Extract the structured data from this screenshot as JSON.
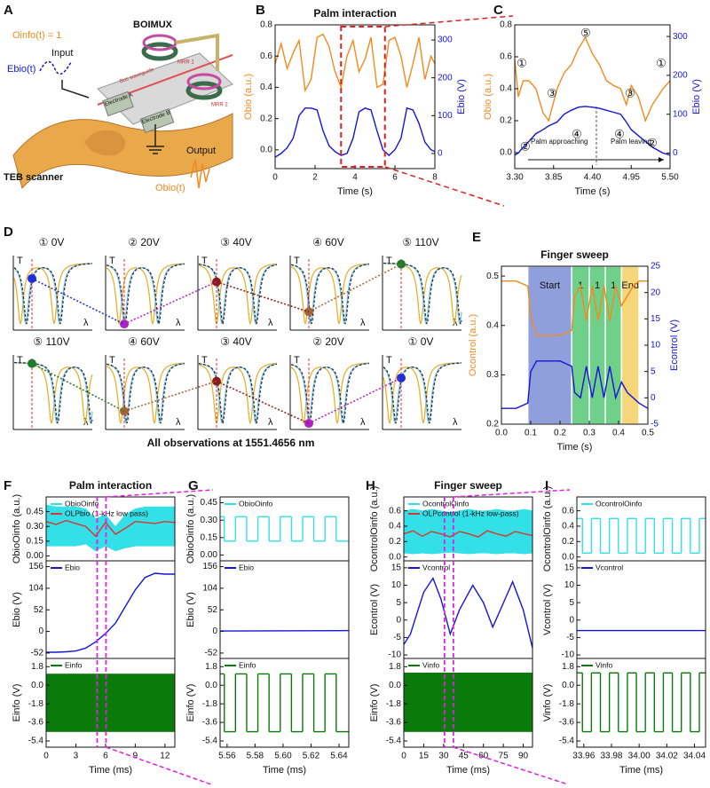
{
  "panel_labels": [
    "A",
    "B",
    "C",
    "D",
    "E",
    "F",
    "G",
    "H",
    "I"
  ],
  "panel_a": {
    "info": "Oinfo(t) = 1",
    "name": "BOIMUX",
    "input": "Input",
    "ebio": "Ebio(t)",
    "waveguide": "Bus waveguide",
    "mrr1": "MRR 1",
    "mrr2": "MRR 2",
    "electrode_a": "Electrode A",
    "electrode_b": "Electrode B",
    "output": "Output",
    "scanner": "TEB scanner",
    "obio": "Obio(t)"
  },
  "panel_d": {
    "rows": [
      [
        "① 0V",
        "② 20V",
        "③ 40V",
        "④ 60V",
        "⑤ 110V"
      ],
      [
        "⑤ 110V",
        "④ 60V",
        "③ 40V",
        "② 20V",
        "① 0V"
      ]
    ],
    "axis_t": "T",
    "axis_lambda": "λ",
    "caption": "All observations at 1551.4656 nm"
  },
  "chart_data": [
    {
      "type": "line",
      "title": "Palm interaction",
      "xlabel": "Time (s)",
      "ylabel": "Obio (a.u.)",
      "y2label": "Ebio (V)",
      "xlim": [
        0,
        8
      ],
      "xticks": [
        0,
        2,
        4,
        6,
        8
      ],
      "ylim": [
        -0.12,
        0.8
      ],
      "yticks": [
        {
          "value": 0,
          "label": "0.0"
        },
        0.2,
        0.4,
        0.6,
        0.8
      ],
      "y2lim": [
        -40,
        340
      ],
      "y2ticks": [
        0,
        100,
        200,
        300
      ],
      "x": [
        0,
        0.3,
        0.6,
        0.9,
        1.2,
        1.5,
        1.8,
        2.1,
        2.4,
        2.7,
        3.0,
        3.3,
        3.6,
        3.9,
        4.2,
        4.5,
        4.8,
        5.1,
        5.4,
        5.7,
        6.0,
        6.3,
        6.6,
        6.9,
        7.2,
        7.5,
        7.8,
        8.0
      ],
      "series": [
        {
          "color": "#f28a1e",
          "values": [
            0.55,
            0.68,
            0.52,
            0.62,
            0.7,
            0.38,
            0.45,
            0.72,
            0.74,
            0.66,
            0.5,
            0.4,
            0.6,
            0.7,
            0.5,
            0.58,
            0.72,
            0.4,
            0.42,
            0.7,
            0.72,
            0.6,
            0.4,
            0.55,
            0.72,
            0.45,
            0.6,
            0.55
          ]
        },
        {
          "color": "#1515d6",
          "axis": "y2",
          "values": [
            -10,
            0,
            15,
            40,
            100,
            120,
            120,
            115,
            60,
            20,
            5,
            -5,
            0,
            40,
            110,
            120,
            115,
            60,
            10,
            -5,
            10,
            40,
            120,
            115,
            80,
            30,
            10,
            5
          ]
        }
      ]
    },
    {
      "type": "line",
      "xlabel": "Time (s)",
      "ylabel": "Obio (a.u.)",
      "y2label": "Ebio (V)",
      "xlim": [
        3.3,
        5.5
      ],
      "xticks": [
        {
          "value": 3.3,
          "label": "3.30"
        },
        3.85,
        {
          "value": 4.4,
          "label": "4.40"
        },
        4.95,
        {
          "value": 5.5,
          "label": "5.50"
        }
      ],
      "ylim": [
        -0.1,
        0.8
      ],
      "yticks": [
        {
          "value": 0,
          "label": "0.0"
        },
        0.2,
        0.4,
        0.6,
        0.8
      ],
      "y2lim": [
        -40,
        330
      ],
      "y2ticks": [
        0,
        100,
        200,
        300
      ],
      "annotations": [
        "Palm approaching",
        "Palm leaving"
      ],
      "markers": [
        "①",
        "②",
        "③",
        "④",
        "⑤"
      ],
      "x": [
        3.3,
        3.35,
        3.42,
        3.5,
        3.6,
        3.7,
        3.78,
        3.9,
        4.0,
        4.1,
        4.2,
        4.3,
        4.4,
        4.5,
        4.6,
        4.7,
        4.8,
        4.88,
        4.95,
        5.05,
        5.15,
        5.25,
        5.4,
        5.5
      ],
      "series": [
        {
          "color": "#f28a1e",
          "values": [
            0.58,
            0.35,
            0.45,
            0.45,
            0.4,
            0.25,
            0.2,
            0.4,
            0.5,
            0.55,
            0.65,
            0.72,
            0.62,
            0.55,
            0.45,
            0.42,
            0.4,
            0.3,
            0.42,
            0.35,
            0.2,
            0.3,
            0.4,
            0.45
          ]
        },
        {
          "color": "#1515d6",
          "axis": "y2",
          "values": [
            -5,
            0,
            15,
            30,
            50,
            60,
            70,
            80,
            100,
            110,
            118,
            120,
            118,
            115,
            110,
            105,
            100,
            80,
            60,
            45,
            30,
            15,
            0,
            -5
          ]
        }
      ]
    },
    {
      "type": "line",
      "title": "Finger sweep",
      "xlabel": "Time (s)",
      "ylabel": "Ocontrol (a.u.)",
      "y2label": "Econtrol (V)",
      "xlim": [
        0,
        0.5
      ],
      "xticks": [
        {
          "value": 0,
          "label": "0.0"
        },
        0.1,
        0.2,
        0.3,
        0.4,
        0.5
      ],
      "ylim": [
        0.2,
        0.52
      ],
      "yticks": [
        0.2,
        0.3,
        0.4,
        0.5
      ],
      "y2lim": [
        -5,
        25
      ],
      "y2ticks": [
        -5,
        0,
        5,
        10,
        15,
        20,
        25
      ],
      "regions": [
        {
          "label": "Start",
          "x": [
            0.09,
            0.24
          ],
          "color": "#8e9fdc"
        },
        {
          "label": "1",
          "x": [
            0.24,
            0.3
          ],
          "color": "#6fd08a"
        },
        {
          "label": "1",
          "x": [
            0.3,
            0.355
          ],
          "color": "#6fd08a"
        },
        {
          "label": "1",
          "x": [
            0.355,
            0.41
          ],
          "color": "#6fd08a"
        },
        {
          "label": "End",
          "x": [
            0.41,
            0.47
          ],
          "color": "#f5d77a"
        }
      ],
      "x": [
        0,
        0.05,
        0.09,
        0.1,
        0.12,
        0.2,
        0.24,
        0.25,
        0.27,
        0.29,
        0.31,
        0.33,
        0.35,
        0.37,
        0.39,
        0.41,
        0.43,
        0.45,
        0.47,
        0.5
      ],
      "series": [
        {
          "color": "#f28a1e",
          "values": [
            0.49,
            0.49,
            0.48,
            0.42,
            0.38,
            0.38,
            0.39,
            0.46,
            0.48,
            0.41,
            0.48,
            0.41,
            0.48,
            0.41,
            0.48,
            0.44,
            0.46,
            0.48,
            0.49,
            0.49
          ]
        },
        {
          "color": "#1515d6",
          "axis": "y2",
          "values": [
            -2,
            -2,
            -1,
            5,
            7,
            7,
            6,
            1,
            0,
            6,
            0,
            6,
            0,
            6,
            0,
            3,
            1,
            0,
            -1,
            -2
          ]
        }
      ]
    },
    {
      "type": "band",
      "title": "Palm interaction",
      "ylabel": "ObioOinfo (a.u.)",
      "xlim": [
        0,
        13
      ],
      "ylim": [
        -0.05,
        0.6
      ],
      "yticks": [
        {
          "value": 0,
          "label": "0.00"
        },
        0.15,
        {
          "value": 0.3,
          "label": "0.30"
        },
        0.45
      ],
      "x": [
        0,
        1,
        2,
        3,
        4,
        5,
        6,
        7,
        8,
        9,
        10,
        11,
        12,
        13
      ],
      "series": [
        {
          "name": "ObioOinfo",
          "color": "#33e0e8",
          "high": [
            0.52,
            0.5,
            0.5,
            0.5,
            0.48,
            0.38,
            0.42,
            0.3,
            0.42,
            0.48,
            0.5,
            0.5,
            0.5,
            0.5
          ],
          "low": [
            0.1,
            0.1,
            0.1,
            0.1,
            0.12,
            0.05,
            0.1,
            0.05,
            0.08,
            0.1,
            0.1,
            0.1,
            0.1,
            0.1
          ]
        },
        {
          "name": "OLPbio (1-kHz low pass)",
          "color": "#d9352a",
          "values": [
            0.35,
            0.32,
            0.36,
            0.33,
            0.3,
            0.2,
            0.34,
            0.22,
            0.28,
            0.35,
            0.34,
            0.33,
            0.35,
            0.34
          ]
        }
      ]
    },
    {
      "type": "line",
      "ylabel": "Ebio (V)",
      "xlim": [
        0,
        13
      ],
      "ylim": [
        -65,
        170
      ],
      "yticks": [
        -52,
        0,
        52,
        104,
        156
      ],
      "x": [
        0,
        1,
        2,
        3,
        4,
        5,
        6,
        7,
        8,
        9,
        10,
        11,
        12,
        13
      ],
      "series": [
        {
          "name": "Ebio",
          "color": "#1515d6",
          "values": [
            -50,
            -50,
            -49,
            -47,
            -40,
            -25,
            -5,
            20,
            60,
            100,
            130,
            140,
            138,
            138
          ]
        }
      ]
    },
    {
      "type": "band",
      "ylabel": "Einfo (V)",
      "xlabel": "Time (ms)",
      "xlim": [
        0,
        13
      ],
      "xticks": [
        0,
        3,
        6,
        9,
        12
      ],
      "ylim": [
        -6,
        2.6
      ],
      "yticks": [
        -5.4,
        -3.6,
        -1.8,
        {
          "value": 0,
          "label": "0.0"
        },
        1.8
      ],
      "x": [
        0,
        13
      ],
      "series": [
        {
          "name": "Einfo",
          "color": "#0a7a0a",
          "high": [
            1.1,
            1.1
          ],
          "low": [
            -4.5,
            -4.5
          ]
        }
      ]
    },
    {
      "type": "step",
      "ylabel": "ObioOinfo (a.u.)",
      "xlim": [
        5.555,
        5.647
      ],
      "ylim": [
        -0.05,
        0.5
      ],
      "yticks": [
        {
          "value": 0,
          "label": "0.00"
        },
        0.15,
        {
          "value": 0.3,
          "label": "0.30"
        },
        0.45
      ],
      "x": [
        5.555,
        5.558,
        5.566,
        5.574,
        5.582,
        5.59,
        5.598,
        5.606,
        5.614,
        5.622,
        5.63,
        5.638
      ],
      "series": [
        {
          "name": "ObioOinfo",
          "color": "#33e0e8",
          "values": [
            0.33,
            0.12,
            0.33,
            0.12,
            0.33,
            0.12,
            0.33,
            0.12,
            0.33,
            0.12,
            0.33,
            0.12
          ]
        }
      ]
    },
    {
      "type": "line",
      "ylabel": "Ebio (V)",
      "xlim": [
        5.555,
        5.647
      ],
      "ylim": [
        -65,
        170
      ],
      "yticks": [
        -52,
        0,
        52,
        104,
        156
      ],
      "x": [
        5.555,
        5.647
      ],
      "series": [
        {
          "name": "Ebio",
          "color": "#1515d6",
          "values": [
            1,
            2
          ]
        }
      ]
    },
    {
      "type": "step",
      "ylabel": "Einfo (V)",
      "xlabel": "Time (ms)",
      "xlim": [
        5.555,
        5.647
      ],
      "xticks": [
        5.56,
        5.58,
        {
          "value": 5.6,
          "label": "5.60"
        },
        5.62,
        5.64
      ],
      "ylim": [
        -6,
        2.6
      ],
      "yticks": [
        -5.4,
        -3.6,
        -1.8,
        {
          "value": 0,
          "label": "0.0"
        },
        1.8
      ],
      "x": [
        5.555,
        5.558,
        5.566,
        5.574,
        5.582,
        5.59,
        5.598,
        5.606,
        5.614,
        5.622,
        5.63,
        5.638
      ],
      "series": [
        {
          "name": "Einfo",
          "color": "#0a7a0a",
          "values": [
            1.1,
            -4.5,
            1.1,
            -4.5,
            1.1,
            -4.5,
            1.1,
            -4.5,
            1.1,
            -4.5,
            1.1,
            -4.5
          ]
        }
      ]
    },
    {
      "type": "band",
      "title": "Finger sweep",
      "ylabel": "OcontrolOinfo (a.u.)",
      "xlim": [
        0,
        97
      ],
      "ylim": [
        -0.05,
        0.78
      ],
      "yticks": [
        {
          "value": 0,
          "label": "0.0"
        },
        0.2,
        0.4,
        0.6
      ],
      "x": [
        0,
        7,
        14,
        21,
        28,
        35,
        42,
        49,
        56,
        63,
        70,
        77,
        84,
        91,
        97
      ],
      "series": [
        {
          "name": "OcontrolOinfo",
          "color": "#33e0e8",
          "high": [
            0.6,
            0.62,
            0.6,
            0.62,
            0.6,
            0.58,
            0.6,
            0.62,
            0.6,
            0.6,
            0.62,
            0.6,
            0.6,
            0.62,
            0.6
          ],
          "low": [
            0.05,
            0.04,
            0.05,
            0.04,
            0.05,
            0.06,
            0.05,
            0.04,
            0.05,
            0.05,
            0.04,
            0.05,
            0.05,
            0.04,
            0.05
          ]
        },
        {
          "name": "OLPcontrol (1-kHz low-pass)",
          "color": "#d9352a",
          "values": [
            0.3,
            0.34,
            0.27,
            0.33,
            0.3,
            0.26,
            0.33,
            0.3,
            0.26,
            0.34,
            0.3,
            0.27,
            0.33,
            0.3,
            0.28
          ]
        }
      ]
    },
    {
      "type": "line",
      "ylabel": "Econtrol (V)",
      "xlim": [
        0,
        97
      ],
      "ylim": [
        -11,
        17
      ],
      "yticks": [
        -10,
        -5,
        0,
        5,
        10,
        15
      ],
      "x": [
        0,
        5,
        10,
        15,
        22,
        28,
        35,
        42,
        52,
        60,
        67,
        74,
        82,
        90,
        97
      ],
      "series": [
        {
          "name": "Vcontrol",
          "color": "#1515d6",
          "values": [
            -7,
            -4,
            2,
            8,
            12,
            6,
            -4,
            3,
            10,
            5,
            -2,
            4,
            11,
            3,
            -8
          ]
        }
      ]
    },
    {
      "type": "band",
      "ylabel": "Einfo (V)",
      "xlabel": "Time (ms)",
      "xlim": [
        0,
        97
      ],
      "xticks": [
        0,
        15,
        30,
        45,
        60,
        75,
        90
      ],
      "ylim": [
        -6,
        2.6
      ],
      "yticks": [
        -5.4,
        -3.6,
        -1.8,
        {
          "value": 0,
          "label": "0.0"
        },
        1.8
      ],
      "x": [
        0,
        97
      ],
      "series": [
        {
          "name": "Vinfo",
          "color": "#0a7a0a",
          "high": [
            1.2,
            1.2
          ],
          "low": [
            -4.5,
            -4.5
          ]
        }
      ]
    },
    {
      "type": "step",
      "ylabel": "OcontrolOinfo (a.u.)",
      "xlim": [
        33.955,
        34.048
      ],
      "ylim": [
        -0.05,
        0.78
      ],
      "yticks": [
        {
          "value": 0,
          "label": "0.0"
        },
        0.2,
        0.4,
        0.6
      ],
      "x": [
        33.955,
        33.959,
        33.9655,
        33.972,
        33.9785,
        33.985,
        33.9915,
        33.998,
        34.0045,
        34.011,
        34.0175,
        34.024,
        34.0305,
        34.037,
        34.0435
      ],
      "series": [
        {
          "name": "OcontrolOinfo",
          "color": "#33e0e8",
          "values": [
            0.5,
            0.05,
            0.5,
            0.05,
            0.5,
            0.05,
            0.5,
            0.05,
            0.5,
            0.05,
            0.5,
            0.05,
            0.5,
            0.05,
            0.5
          ]
        }
      ]
    },
    {
      "type": "line",
      "ylabel": "Vcontrol (V)",
      "xlim": [
        33.955,
        34.048
      ],
      "ylim": [
        -11,
        17
      ],
      "yticks": [
        -10,
        -5,
        0,
        5,
        10,
        15
      ],
      "x": [
        33.955,
        34.048
      ],
      "series": [
        {
          "name": "Vcontrol",
          "color": "#1515d6",
          "values": [
            -3,
            -3
          ]
        }
      ]
    },
    {
      "type": "step",
      "ylabel": "Vinfo (V)",
      "xlabel": "Time (ms)",
      "xlim": [
        33.955,
        34.048
      ],
      "xticks": [
        33.96,
        33.98,
        {
          "value": 34,
          "label": "34.00"
        },
        34.02,
        34.04
      ],
      "ylim": [
        -6,
        2.6
      ],
      "yticks": [
        -5.4,
        -3.6,
        -1.8,
        {
          "value": 0,
          "label": "0.0"
        },
        1.8
      ],
      "x": [
        33.955,
        33.959,
        33.9655,
        33.972,
        33.9785,
        33.985,
        33.9915,
        33.998,
        34.0045,
        34.011,
        34.0175,
        34.024,
        34.0305,
        34.037,
        34.0435
      ],
      "series": [
        {
          "name": "Vinfo",
          "color": "#0a7a0a",
          "values": [
            1.2,
            -4.5,
            1.2,
            -4.5,
            1.2,
            -4.5,
            1.2,
            -4.5,
            1.2,
            -4.5,
            1.2,
            -4.5,
            1.2,
            -4.5,
            1.2
          ]
        }
      ]
    }
  ]
}
